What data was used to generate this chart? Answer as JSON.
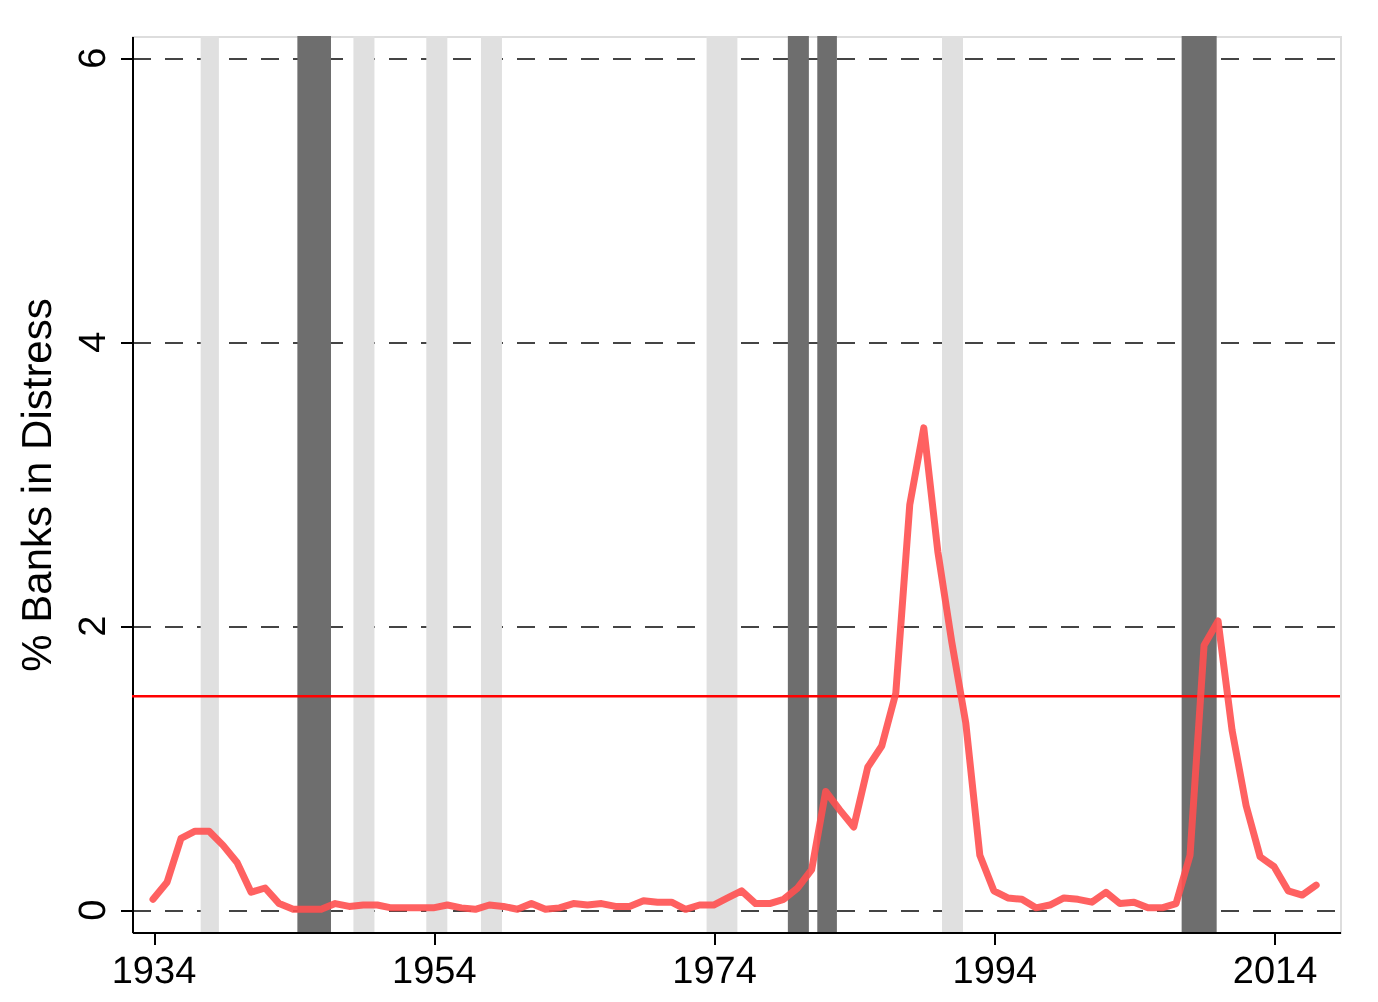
{
  "chart_data": {
    "type": "line",
    "ylabel": "% Banks in Distress",
    "x": [
      1934,
      1935,
      1936,
      1937,
      1938,
      1939,
      1940,
      1941,
      1942,
      1943,
      1944,
      1945,
      1946,
      1947,
      1948,
      1949,
      1950,
      1951,
      1952,
      1953,
      1954,
      1955,
      1956,
      1957,
      1958,
      1959,
      1960,
      1961,
      1962,
      1963,
      1964,
      1965,
      1966,
      1967,
      1968,
      1969,
      1970,
      1971,
      1972,
      1973,
      1974,
      1975,
      1976,
      1977,
      1978,
      1979,
      1980,
      1981,
      1982,
      1983,
      1984,
      1985,
      1986,
      1987,
      1988,
      1989,
      1990,
      1991,
      1992,
      1993,
      1994,
      1995,
      1996,
      1997,
      1998,
      1999,
      2000,
      2001,
      2002,
      2003,
      2004,
      2005,
      2006,
      2007,
      2008,
      2009,
      2010,
      2011,
      2012,
      2013,
      2014,
      2015,
      2016,
      2017
    ],
    "series": [
      {
        "color": "#ff5050",
        "values": [
          0.07,
          0.19,
          0.5,
          0.55,
          0.55,
          0.45,
          0.33,
          0.12,
          0.15,
          0.04,
          0.0,
          0.0,
          0.0,
          0.04,
          0.02,
          0.03,
          0.03,
          0.01,
          0.01,
          0.01,
          0.01,
          0.03,
          0.01,
          0.0,
          0.03,
          0.02,
          0.0,
          0.04,
          0.0,
          0.01,
          0.04,
          0.03,
          0.04,
          0.02,
          0.02,
          0.06,
          0.05,
          0.05,
          0.0,
          0.03,
          0.03,
          0.08,
          0.13,
          0.04,
          0.04,
          0.07,
          0.15,
          0.28,
          0.83,
          0.7,
          0.58,
          1.0,
          1.15,
          1.52,
          2.85,
          3.39,
          2.52,
          1.88,
          1.31,
          0.38,
          0.13,
          0.08,
          0.07,
          0.01,
          0.03,
          0.08,
          0.07,
          0.05,
          0.12,
          0.04,
          0.05,
          0.01,
          0.01,
          0.04,
          0.38,
          1.86,
          2.03,
          1.26,
          0.73,
          0.37,
          0.3,
          0.13,
          0.1,
          0.17
        ]
      }
    ],
    "xlim": [
      1932.5,
      2018.7
    ],
    "xticks": [
      1934,
      1954,
      1974,
      1994,
      2014
    ],
    "ylim": [
      -0.16,
      6.15
    ],
    "yticks": [
      0,
      2,
      4,
      6
    ],
    "grid": "y",
    "ref_lines": [
      {
        "axis": "y",
        "value": 1.5,
        "color": "#ff0000"
      }
    ],
    "bands": [
      {
        "axis": "x",
        "from": 1937.4,
        "to": 1938.7,
        "color": "#e0e0e0"
      },
      {
        "axis": "x",
        "from": 1944.3,
        "to": 1946.7,
        "color": "#6e6e6e"
      },
      {
        "axis": "x",
        "from": 1948.3,
        "to": 1949.8,
        "color": "#e0e0e0"
      },
      {
        "axis": "x",
        "from": 1953.5,
        "to": 1955.0,
        "color": "#e0e0e0"
      },
      {
        "axis": "x",
        "from": 1957.4,
        "to": 1958.9,
        "color": "#e0e0e0"
      },
      {
        "axis": "x",
        "from": 1973.5,
        "to": 1975.7,
        "color": "#e0e0e0"
      },
      {
        "axis": "x",
        "from": 1979.3,
        "to": 1980.8,
        "color": "#6e6e6e"
      },
      {
        "axis": "x",
        "from": 1981.4,
        "to": 1982.8,
        "color": "#6e6e6e"
      },
      {
        "axis": "x",
        "from": 1990.3,
        "to": 1991.8,
        "color": "#e0e0e0"
      },
      {
        "axis": "x",
        "from": 2007.4,
        "to": 2009.9,
        "color": "#6e6e6e"
      }
    ]
  }
}
